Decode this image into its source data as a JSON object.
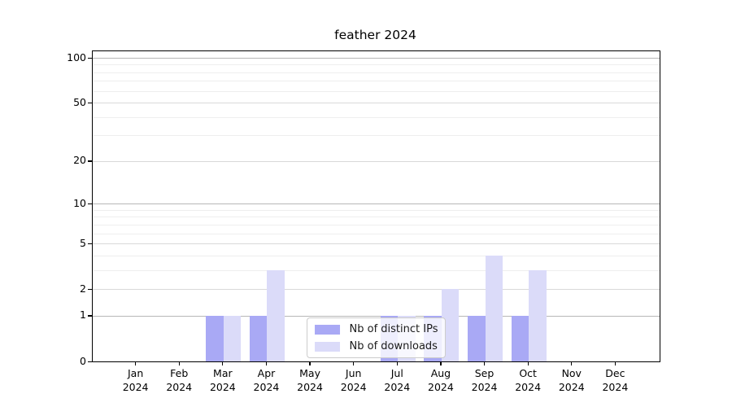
{
  "chart_data": {
    "type": "bar",
    "title": "feather 2024",
    "categories": [
      "Jan",
      "Feb",
      "Mar",
      "Apr",
      "May",
      "Jun",
      "Jul",
      "Aug",
      "Sep",
      "Oct",
      "Nov",
      "Dec"
    ],
    "category_year": "2024",
    "series": [
      {
        "name": "Nb of distinct IPs",
        "color": "#a9a9f5",
        "values": [
          0,
          0,
          1,
          1,
          0,
          0,
          1,
          1,
          1,
          1,
          0,
          0
        ]
      },
      {
        "name": "Nb of downloads",
        "color": "#dbdbf9",
        "values": [
          0,
          0,
          1,
          3,
          0,
          0,
          1,
          2,
          4,
          3,
          0,
          0
        ]
      }
    ],
    "yscale": "log1p",
    "ylim": [
      0,
      110
    ],
    "yticks": [
      0,
      1,
      2,
      5,
      10,
      20,
      50,
      100
    ],
    "yticks_minor": [
      3,
      4,
      6,
      7,
      8,
      9,
      30,
      40,
      60,
      70,
      80,
      90
    ],
    "grid": "both",
    "legend_position": "lower center",
    "colors": {
      "bar_distinct_ips": "#a9a9f5",
      "bar_downloads": "#dbdbf9",
      "grid_major": "#b7b7b7",
      "grid_mid": "#d9d9d9",
      "grid_minor": "#eeeeee",
      "spine": "#000000",
      "text": "#000000"
    }
  }
}
